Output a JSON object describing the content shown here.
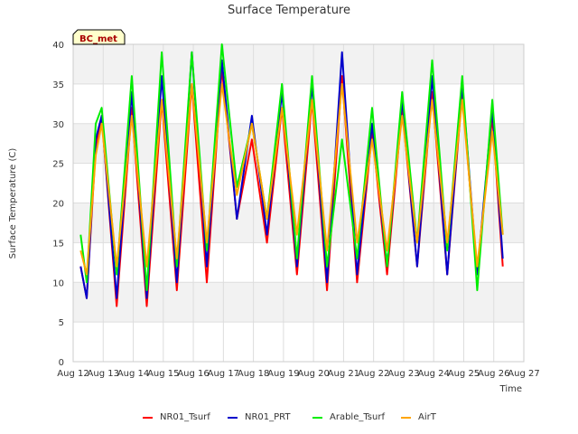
{
  "chart_data": {
    "type": "line",
    "title": "Surface Temperature",
    "xlabel": "Time",
    "ylabel": "Surface Temperature (C)",
    "badge": "BC_met",
    "ylim": [
      0,
      40
    ],
    "yticks": [
      0,
      5,
      10,
      15,
      20,
      25,
      30,
      35,
      40
    ],
    "xlim": [
      0,
      15
    ],
    "xticks": [
      {
        "x": 0,
        "label": "Aug 12"
      },
      {
        "x": 1,
        "label": "Aug 13"
      },
      {
        "x": 2,
        "label": "Aug 14"
      },
      {
        "x": 3,
        "label": "Aug 15"
      },
      {
        "x": 4,
        "label": "Aug 16"
      },
      {
        "x": 5,
        "label": "Aug 17"
      },
      {
        "x": 6,
        "label": "Aug 18"
      },
      {
        "x": 7,
        "label": "Aug 19"
      },
      {
        "x": 8,
        "label": "Aug 20"
      },
      {
        "x": 9,
        "label": "Aug 21"
      },
      {
        "x": 10,
        "label": "Aug 22"
      },
      {
        "x": 11,
        "label": "Aug 23"
      },
      {
        "x": 12,
        "label": "Aug 24"
      },
      {
        "x": 13,
        "label": "Aug 25"
      },
      {
        "x": 14,
        "label": "Aug 26"
      },
      {
        "x": 15,
        "label": "Aug 27"
      }
    ],
    "grid": true,
    "legend_position": "bottom",
    "series": [
      {
        "name": "NR01_Tsurf",
        "color": "#ff0000",
        "x": [
          0.25,
          0.45,
          0.75,
          0.95,
          1.45,
          1.95,
          2.45,
          2.95,
          3.45,
          3.95,
          4.45,
          4.95,
          5.45,
          5.95,
          6.45,
          6.95,
          7.45,
          7.95,
          8.45,
          8.95,
          9.45,
          9.95,
          10.45,
          10.95,
          11.45,
          11.95,
          12.45,
          12.95,
          13.45,
          13.95,
          14.3
        ],
        "y": [
          12,
          8,
          27,
          31,
          7,
          32,
          7,
          33,
          9,
          35,
          10,
          37,
          18,
          28,
          15,
          32,
          11,
          33,
          9,
          36,
          10,
          29,
          11,
          32,
          12,
          34,
          11,
          34,
          11,
          31,
          12
        ]
      },
      {
        "name": "NR01_PRT",
        "color": "#0000cc",
        "x": [
          0.25,
          0.45,
          0.75,
          0.95,
          1.45,
          1.95,
          2.45,
          2.95,
          3.45,
          3.95,
          4.45,
          4.95,
          5.45,
          5.95,
          6.45,
          6.95,
          7.45,
          7.95,
          8.45,
          8.95,
          9.45,
          9.95,
          10.45,
          10.95,
          11.45,
          11.95,
          12.45,
          12.95,
          13.45,
          13.95,
          14.3
        ],
        "y": [
          12,
          8,
          28,
          31,
          8,
          34,
          8,
          36,
          10,
          39,
          12,
          38,
          18,
          31,
          16,
          34,
          12,
          35,
          10,
          39,
          11,
          30,
          12,
          33,
          12,
          36,
          11,
          35,
          11,
          32,
          13
        ]
      },
      {
        "name": "Arable_Tsurf",
        "color": "#00ee00",
        "x": [
          0.25,
          0.45,
          0.75,
          0.95,
          1.45,
          1.95,
          2.45,
          2.95,
          3.45,
          3.95,
          4.45,
          4.95,
          5.45,
          5.95,
          6.45,
          6.95,
          7.45,
          7.95,
          8.45,
          8.95,
          9.45,
          9.95,
          10.45,
          10.95,
          11.45,
          11.95,
          12.45,
          12.95,
          13.45,
          13.95,
          14.3
        ],
        "y": [
          16,
          10,
          30,
          32,
          11,
          36,
          9,
          39,
          12,
          39,
          14,
          40,
          22,
          30,
          18,
          35,
          13,
          36,
          12,
          28,
          13,
          32,
          12,
          34,
          15,
          38,
          14,
          36,
          9,
          33,
          16
        ]
      },
      {
        "name": "AirT",
        "color": "#ffa500",
        "x": [
          0.25,
          0.45,
          0.75,
          0.95,
          1.45,
          1.95,
          2.45,
          2.95,
          3.45,
          3.95,
          4.45,
          4.95,
          5.45,
          5.95,
          6.45,
          6.95,
          7.45,
          7.95,
          8.45,
          8.95,
          9.45,
          9.95,
          10.45,
          10.95,
          11.45,
          11.95,
          12.45,
          12.95,
          13.45,
          13.95,
          14.3
        ],
        "y": [
          14,
          11,
          26,
          30,
          12,
          31,
          12,
          33,
          13,
          35,
          15,
          35,
          21,
          30,
          18,
          32,
          16,
          33,
          14,
          35,
          15,
          28,
          14,
          31,
          15,
          33,
          15,
          33,
          12,
          29,
          16
        ]
      }
    ]
  }
}
